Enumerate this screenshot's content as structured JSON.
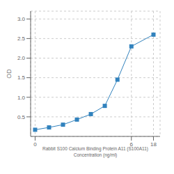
{
  "chart_data": {
    "type": "line",
    "x": [
      0.05,
      0.1,
      0.2,
      0.4,
      0.8,
      1.6,
      3,
      6,
      18
    ],
    "values": [
      0.17,
      0.23,
      0.3,
      0.43,
      0.57,
      0.78,
      1.45,
      2.3,
      2.6
    ],
    "xlabel": "Rabbit S100 Calcium Binding Protein A11 (S100A11)\nConcentration (ng/ml)",
    "ylabel": "OD",
    "log": "x",
    "xlim": [
      0.04,
      25
    ],
    "xticks": [
      {
        "value": 0.05,
        "label": "0"
      },
      6,
      18
    ],
    "ylim": [
      0.0,
      3.2
    ],
    "yticks": [
      0.5,
      {
        "value": 1.0,
        "label": "1.0"
      },
      1.5,
      {
        "value": 2.0,
        "label": "2.0"
      },
      2.5,
      {
        "value": 3.0,
        "label": "3.0"
      }
    ],
    "marker": "square",
    "grid": true
  }
}
